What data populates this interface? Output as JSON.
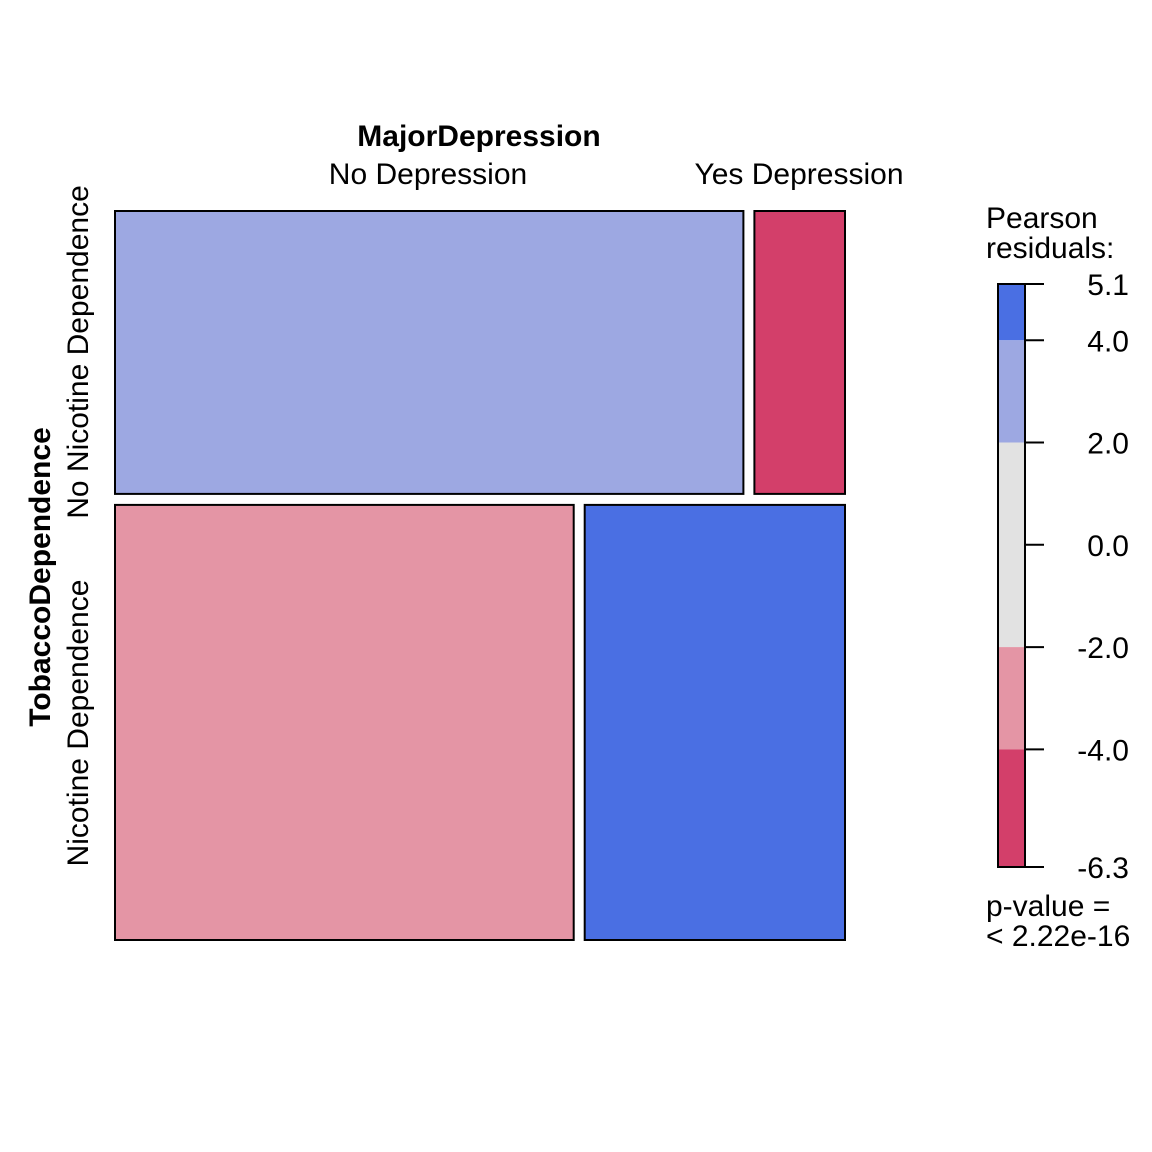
{
  "chart_data": {
    "type": "mosaic",
    "title": "",
    "xvar": "MajorDepression",
    "yvar": "TobaccoDependence",
    "x_levels": [
      "No Depression",
      "Yes Depression"
    ],
    "y_levels": [
      "No Nicotine Dependence",
      "Nicotine Dependence"
    ],
    "row_proportions": [
      0.394,
      0.606
    ],
    "col_proportions_within_row": [
      [
        0.874,
        0.126
      ],
      [
        0.638,
        0.362
      ]
    ],
    "residual_class": [
      [
        "pos_moderate",
        "neg_strong"
      ],
      [
        "neg_moderate",
        "pos_strong"
      ]
    ],
    "colors": {
      "pos_strong": "#4A6FE3",
      "pos_moderate": "#9DA8E2",
      "neutral": "#E2E2E2",
      "neg_moderate": "#E495A5",
      "neg_strong": "#D33F6A"
    },
    "legend": {
      "title_line1": "Pearson",
      "title_line2": "residuals:",
      "range": [
        -6.3,
        5.1
      ],
      "ticks": [
        "5.1",
        "4.0",
        "2.0",
        "0.0",
        "-2.0",
        "-4.0",
        "-6.3"
      ],
      "tick_values": [
        5.1,
        4.0,
        2.0,
        0.0,
        -2.0,
        -4.0,
        -6.3
      ],
      "bands": [
        {
          "from": 4.0,
          "to": 5.1,
          "color": "#4A6FE3"
        },
        {
          "from": 2.0,
          "to": 4.0,
          "color": "#9DA8E2"
        },
        {
          "from": -2.0,
          "to": 2.0,
          "color": "#E2E2E2"
        },
        {
          "from": -4.0,
          "to": -2.0,
          "color": "#E495A5"
        },
        {
          "from": -6.3,
          "to": -4.0,
          "color": "#D33F6A"
        }
      ],
      "pvalue_line1": "p-value =",
      "pvalue_line2": "< 2.22e-16"
    }
  }
}
